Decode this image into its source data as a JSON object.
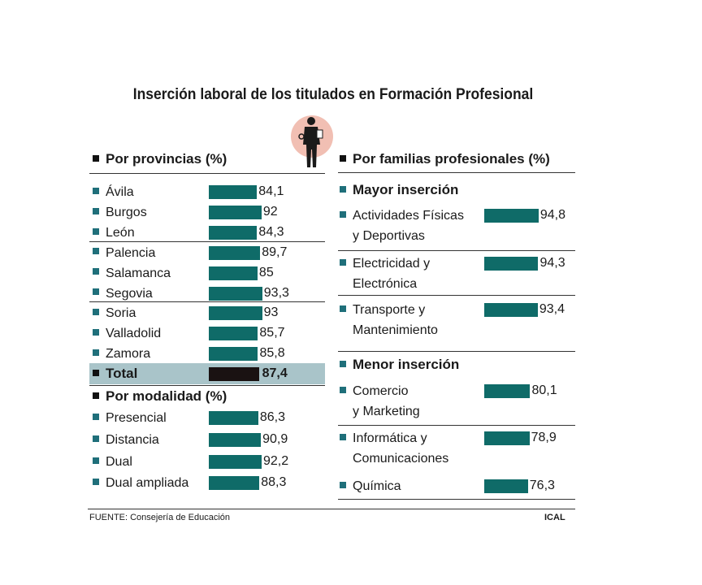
{
  "chart_data": {
    "type": "bar",
    "title": "Inserción laboral de los titulados en Formación Profesional",
    "colors": {
      "bar": "#0f6b68",
      "total_bar": "#1a1212",
      "total_band": "#a9c4c9",
      "bullet": "#1f6f7a",
      "icon_circle": "#f1bfb3"
    },
    "icon": "worker-silhouette-icon",
    "provincias": {
      "header": "Por provincias (%)",
      "categories": [
        "Ávila",
        "Burgos",
        "León",
        "Palencia",
        "Salamanca",
        "Segovia",
        "Soria",
        "Valladolid",
        "Zamora"
      ],
      "values": [
        84.1,
        92,
        84.3,
        89.7,
        85,
        93.3,
        93,
        85.7,
        85.8
      ],
      "labels": [
        "84,1",
        "92",
        "84,3",
        "89,7",
        "85",
        "93,3",
        "93",
        "85,7",
        "85,8"
      ]
    },
    "total": {
      "label": "Total",
      "value": 87.4,
      "text": "87,4"
    },
    "modalidad": {
      "header": "Por modalidad (%)",
      "categories": [
        "Presencial",
        "Distancia",
        "Dual",
        "Dual ampliada"
      ],
      "values": [
        86.3,
        90.9,
        92.2,
        88.3
      ],
      "labels": [
        "86,3",
        "90,9",
        "92,2",
        "88,3"
      ]
    },
    "familias": {
      "header": "Por familias profesionales (%)",
      "mayor": {
        "header": "Mayor inserción",
        "categories": [
          [
            "Actividades Físicas",
            "y Deportivas"
          ],
          [
            "Electricidad y",
            "Electrónica"
          ],
          [
            "Transporte y",
            "Mantenimiento"
          ]
        ],
        "values": [
          94.8,
          94.3,
          93.4
        ],
        "labels": [
          "94,8",
          "94,3",
          "93,4"
        ]
      },
      "menor": {
        "header": "Menor inserción",
        "categories": [
          [
            "Comercio",
            "y Marketing"
          ],
          [
            "Informática y",
            "Comunicaciones"
          ],
          [
            "Química",
            ""
          ]
        ],
        "values": [
          80.1,
          78.9,
          76.3
        ],
        "labels": [
          "80,1",
          "78,9",
          "76,3"
        ]
      }
    },
    "source": "FUENTE: Consejería de Educación",
    "credit": "ICAL"
  }
}
